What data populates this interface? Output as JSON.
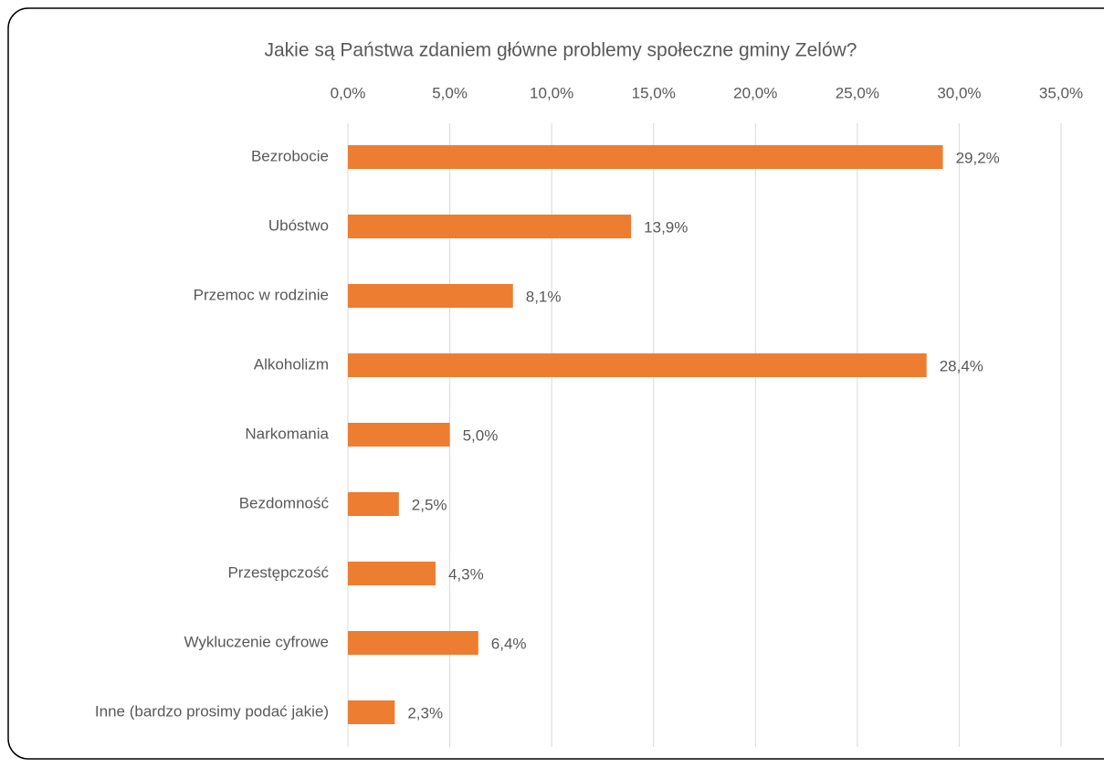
{
  "chart_data": {
    "type": "bar",
    "orientation": "horizontal",
    "title": "Jakie są Państwa zdaniem główne problemy społeczne gminy Zelów?",
    "categories": [
      "Bezrobocie",
      "Ubóstwo",
      "Przemoc w rodzinie",
      "Alkoholizm",
      "Narkomania",
      "Bezdomność",
      "Przestępczość",
      "Wykluczenie cyfrowe",
      "Inne (bardzo prosimy podać jakie)"
    ],
    "values": [
      29.2,
      13.9,
      8.1,
      28.4,
      5.0,
      2.5,
      4.3,
      6.4,
      2.3
    ],
    "value_labels": [
      "29,2%",
      "13,9%",
      "8,1%",
      "28,4%",
      "5,0%",
      "2,5%",
      "4,3%",
      "6,4%",
      "2,3%"
    ],
    "color": "#ed7d31",
    "xlim": [
      0,
      35
    ],
    "xticks": [
      {
        "value": 0,
        "label": "0,0%"
      },
      {
        "value": 5,
        "label": "5,0%"
      },
      {
        "value": 10,
        "label": "10,0%"
      },
      {
        "value": 15,
        "label": "15,0%"
      },
      {
        "value": 20,
        "label": "20,0%"
      },
      {
        "value": 25,
        "label": "25,0%"
      },
      {
        "value": 30,
        "label": "30,0%"
      },
      {
        "value": 35,
        "label": "35,0%"
      }
    ],
    "grid": true
  }
}
